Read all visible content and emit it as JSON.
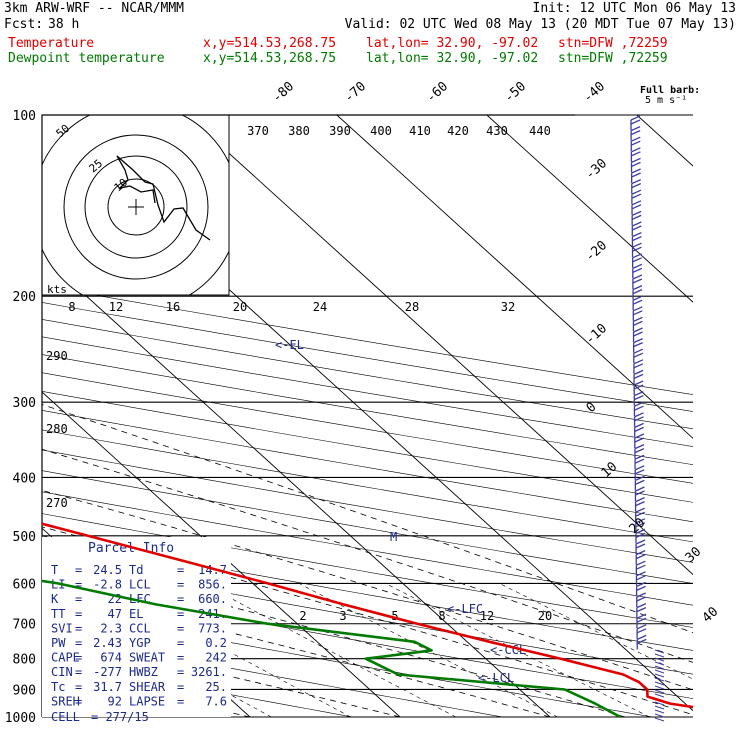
{
  "header": {
    "model": "3km ARW-WRF -- NCAR/MMM",
    "init": "Init: 12 UTC Mon 06 May 13",
    "fcst_label": "Fcst:",
    "fcst_value": "38 h",
    "valid": "Valid: 02 UTC Wed 08 May 13 (20 MDT Tue 07 May 13)",
    "temp_line": {
      "label": "Temperature",
      "xy": "x,y=514.53,268.75",
      "latlon": "lat,lon= 32.90, -97.02",
      "stn": "stn=DFW ,72259"
    },
    "dew_line": {
      "label": "Dewpoint temperature",
      "xy": "x,y=514.53,268.75",
      "latlon": "lat,lon= 32.90, -97.02",
      "stn": "stn=DFW ,72259"
    }
  },
  "colors": {
    "temperature": "#e00000",
    "dewpoint": "#007a00",
    "wind_barb": "#3c3ca8",
    "grid": "#000000",
    "label_blue": "#1c2a8c"
  },
  "chart_data": {
    "type": "line",
    "subtype": "skew-t log-p sounding",
    "pressure_levels": [
      "100",
      "200",
      "300",
      "400",
      "500",
      "600",
      "700",
      "800",
      "900",
      "1000"
    ],
    "isotherm_labels": [
      "-80",
      "-70",
      "-60",
      "-50",
      "-40",
      "-30",
      "-20",
      "-10",
      "0",
      "10",
      "20",
      "30",
      "40"
    ],
    "theta_labels": [
      "370",
      "380",
      "390",
      "400",
      "410",
      "420",
      "430",
      "440"
    ],
    "theta_left_labels": [
      "290",
      "280",
      "270"
    ],
    "mixing_ratio_labels": [
      "2",
      "3",
      "5",
      "8",
      "12",
      "20"
    ],
    "parcel_markers": [
      "<-EL",
      "<-LFC",
      "<-CCL",
      "<-LCL"
    ],
    "level_marker": "M",
    "series": [
      {
        "name": "Temperature",
        "points": [
          [
            1000,
            24.5
          ],
          [
            975,
            21.5
          ],
          [
            950,
            19.0
          ],
          [
            925,
            18.0
          ],
          [
            900,
            18.5
          ],
          [
            875,
            18.5
          ],
          [
            850,
            18.0
          ],
          [
            800,
            15.0
          ],
          [
            750,
            11.5
          ],
          [
            700,
            8.0
          ],
          [
            650,
            4.5
          ],
          [
            600,
            1.0
          ],
          [
            550,
            -3.0
          ],
          [
            500,
            -7.5
          ],
          [
            450,
            -12.5
          ],
          [
            400,
            -18.0
          ],
          [
            350,
            -24.5
          ],
          [
            300,
            -32.0
          ],
          [
            250,
            -41.0
          ],
          [
            225,
            -46.0
          ],
          [
            200,
            -52.0
          ],
          [
            175,
            -54.5
          ],
          [
            150,
            -55.5
          ],
          [
            125,
            -58.0
          ],
          [
            110,
            -61.0
          ],
          [
            100,
            -64.0
          ]
        ]
      },
      {
        "name": "Dewpoint temperature",
        "points": [
          [
            1000,
            14.7
          ],
          [
            950,
            14.0
          ],
          [
            900,
            13.0
          ],
          [
            850,
            3.0
          ],
          [
            800,
            2.0
          ],
          [
            775,
            7.0
          ],
          [
            750,
            6.5
          ],
          [
            700,
            -2.0
          ],
          [
            650,
            -8.0
          ],
          [
            600,
            -13.0
          ],
          [
            550,
            -21.0
          ],
          [
            500,
            -29.0
          ],
          [
            450,
            -40.0
          ],
          [
            430,
            -44.0
          ],
          [
            400,
            -40.0
          ],
          [
            350,
            -37.0
          ],
          [
            320,
            -40.0
          ],
          [
            300,
            -44.0
          ],
          [
            270,
            -52.0
          ],
          [
            250,
            -57.0
          ],
          [
            200,
            -66.0
          ],
          [
            150,
            -79.0
          ],
          [
            100,
            -89.0
          ]
        ]
      }
    ]
  },
  "hodograph": {
    "rings": [
      "50",
      "25",
      "10"
    ],
    "speed_unit": "kts",
    "speed_labels": [
      "8",
      "12",
      "16",
      "20",
      "24",
      "28",
      "32"
    ]
  },
  "wind_barbs": {
    "legend": "Full barb:",
    "legend_unit": "5 m s⁻¹"
  },
  "parcel_info": {
    "title": "Parcel Info",
    "rows": [
      [
        "T",
        "24.5",
        "Td",
        "14.7"
      ],
      [
        "LI",
        "-2.8",
        "LCL",
        "856."
      ],
      [
        "K",
        "22",
        "LFC",
        "660."
      ],
      [
        "TT",
        "47",
        "EL",
        "241."
      ],
      [
        "SVI",
        "2.3",
        "CCL",
        "773."
      ],
      [
        "PW",
        "2.43",
        "YGP",
        "0.2"
      ],
      [
        "CAPE",
        "674",
        "SWEAT",
        "242"
      ],
      [
        "CIN",
        "-277",
        "HWBZ",
        "3261."
      ],
      [
        "Tc",
        "31.7",
        "SHEAR",
        "25."
      ],
      [
        "SREH",
        "92",
        "LAPSE",
        "7.6"
      ]
    ],
    "cell_label": "CELL",
    "cell_value": "277/15"
  }
}
